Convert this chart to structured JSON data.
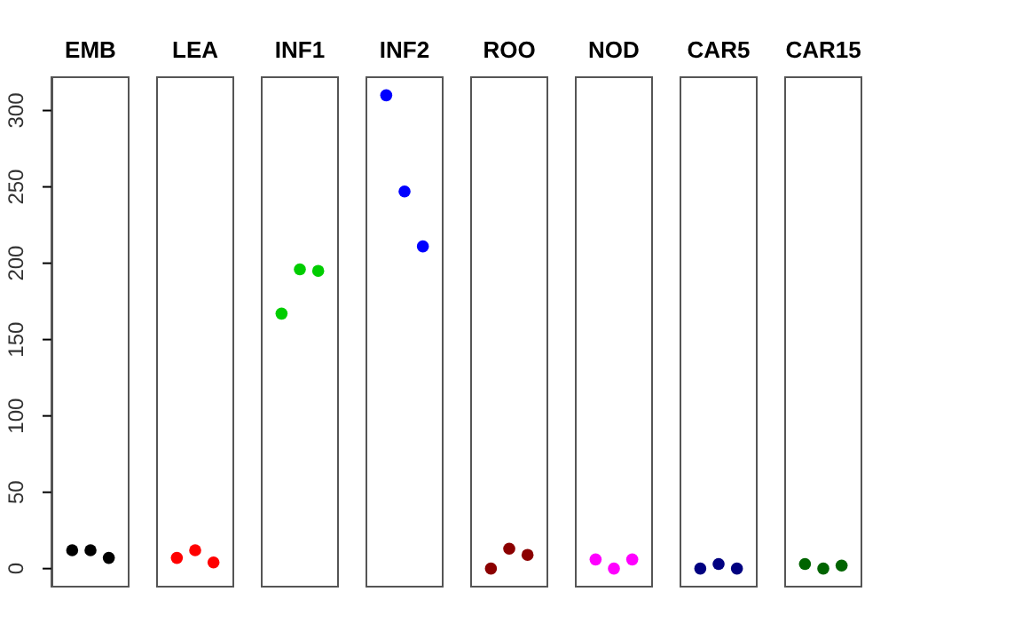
{
  "chart_data": {
    "type": "scatter",
    "categories": [
      "EMB",
      "LEA",
      "INF1",
      "INF2",
      "ROO",
      "NOD",
      "CAR5",
      "CAR15"
    ],
    "series": [
      {
        "colors": [
          "#000000",
          "#ff0000",
          "#00cd00",
          "#0000ff",
          "#8b0000",
          "#ff00ff",
          "#000080",
          "#006400"
        ],
        "values": [
          12,
          7,
          167,
          310,
          0,
          6,
          0,
          3
        ]
      },
      {
        "colors": [
          "#000000",
          "#ff0000",
          "#00cd00",
          "#0000ff",
          "#8b0000",
          "#ff00ff",
          "#000080",
          "#006400"
        ],
        "values": [
          12,
          12,
          196,
          247,
          13,
          0,
          3,
          0
        ]
      },
      {
        "colors": [
          "#000000",
          "#ff0000",
          "#00cd00",
          "#0000ff",
          "#8b0000",
          "#ff00ff",
          "#000080",
          "#006400"
        ],
        "values": [
          7,
          4,
          195,
          211,
          9,
          6,
          0,
          2
        ]
      }
    ],
    "ylim": [
      -12.4,
      322.4
    ],
    "yticks": [
      0,
      50,
      100,
      150,
      200,
      250,
      300
    ],
    "marker": "circle"
  }
}
